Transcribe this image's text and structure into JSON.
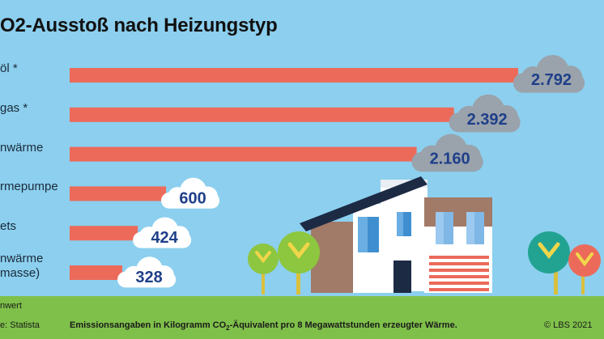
{
  "chart_data": {
    "type": "bar",
    "title": "O2-Ausstoß nach Heizungstyp",
    "categories": [
      "öl *",
      "gas *",
      "nwärme",
      "rmepumpe",
      "ets",
      "nwärme\nmasse)"
    ],
    "values": [
      2792,
      2392,
      2160,
      600,
      424,
      328
    ],
    "value_labels": [
      "2.792",
      "2.392",
      "2.160",
      "600",
      "424",
      "328"
    ],
    "xlim": [
      0,
      2792
    ],
    "grid": false,
    "legend": "none",
    "footnote": "nwert",
    "source": "e: Statista",
    "note_before": "Emissionsangaben in Kilogramm CO",
    "note_sub": "2",
    "note_after": "-Äquivalent pro 8 Megawattstunden erzeugter Wärme.",
    "copyright": "© LBS 2021"
  },
  "colors": {
    "background": "#8ccfee",
    "bar": "#ec6a5a",
    "cloud_dark": "#9aa2ab",
    "cloud_light": "#ffffff",
    "value_text": "#1e3f8a",
    "ground": "#7fc04a"
  },
  "icons": [
    "cloud-icon",
    "house-illustration",
    "tree-icon"
  ]
}
